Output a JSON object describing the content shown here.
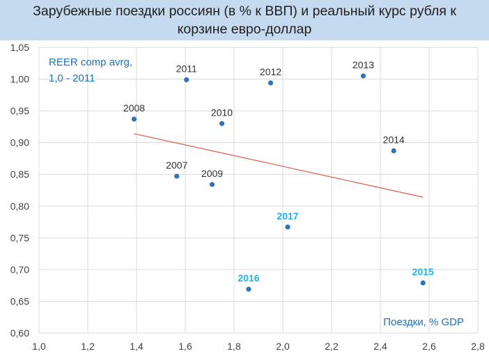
{
  "title": {
    "line1": "Зарубежные поездки россиян (в % к ВВП) и реальный курс рубля к",
    "line2": "корзине евро-доллар"
  },
  "colors": {
    "title_bg": "#c5d9ef",
    "point": "#2e75b6",
    "trend": "#e05a4e",
    "highlight_label": "#1fb3ea",
    "annotation": "#1f6fb5",
    "grid": "#d9d9d9"
  },
  "chart_data": {
    "type": "scatter",
    "title": "Зарубежные поездки россиян (в % к ВВП) и реальный курс рубля к корзине евро-доллар",
    "ylabel": "REER comp avrg, 1,0 - 2011",
    "ylabel_lines": [
      "REER comp avrg,",
      "1,0 - 2011"
    ],
    "xlabel": "Поездки, % GDP",
    "xlim": [
      1.0,
      2.8
    ],
    "ylim": [
      0.6,
      1.05
    ],
    "x_ticks": [
      "1,0",
      "1,2",
      "1,4",
      "1,6",
      "1,8",
      "2,0",
      "2,2",
      "2,4",
      "2,6",
      "2,8"
    ],
    "y_ticks": [
      "0,60",
      "0,65",
      "0,70",
      "0,75",
      "0,80",
      "0,85",
      "0,90",
      "0,95",
      "1,00",
      "1,05"
    ],
    "grid": "vertical and horizontal",
    "points": [
      {
        "label": "2007",
        "x": 1.565,
        "y": 0.847,
        "highlight": false
      },
      {
        "label": "2008",
        "x": 1.39,
        "y": 0.937,
        "highlight": false
      },
      {
        "label": "2009",
        "x": 1.71,
        "y": 0.834,
        "highlight": false
      },
      {
        "label": "2010",
        "x": 1.75,
        "y": 0.93,
        "highlight": false
      },
      {
        "label": "2011",
        "x": 1.605,
        "y": 0.999,
        "highlight": false
      },
      {
        "label": "2012",
        "x": 1.95,
        "y": 0.994,
        "highlight": false
      },
      {
        "label": "2013",
        "x": 2.33,
        "y": 1.005,
        "highlight": false
      },
      {
        "label": "2014",
        "x": 2.455,
        "y": 0.887,
        "highlight": false
      },
      {
        "label": "2015",
        "x": 2.575,
        "y": 0.679,
        "highlight": true
      },
      {
        "label": "2016",
        "x": 1.86,
        "y": 0.669,
        "highlight": true
      },
      {
        "label": "2017",
        "x": 2.02,
        "y": 0.767,
        "highlight": true
      }
    ],
    "trendline": {
      "x": [
        1.39,
        2.575
      ],
      "y": [
        0.914,
        0.814
      ]
    }
  }
}
